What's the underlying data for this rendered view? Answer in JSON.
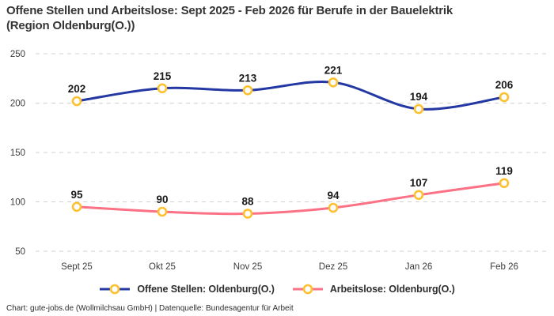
{
  "header": {
    "title_lines": [
      "Offene Stellen und Arbeitslose: Sept 2025 - Feb 2026 für Berufe in der Bauelektrik",
      "(Region Oldenburg(O.))"
    ]
  },
  "chart_data": {
    "type": "line",
    "title": "Offene Stellen und Arbeitslose: Sept 2025 - Feb 2026 für Berufe in der Bauelektrik (Region Oldenburg(O.))",
    "categories": [
      "Sept 25",
      "Okt 25",
      "Nov 25",
      "Dez 25",
      "Jan 26",
      "Feb 26"
    ],
    "series": [
      {
        "name": "Offene Stellen: Oldenburg(O.)",
        "values": [
          202,
          215,
          213,
          221,
          194,
          206
        ],
        "color": "#2338a3"
      },
      {
        "name": "Arbeitslose: Oldenburg(O.)",
        "values": [
          95,
          90,
          88,
          94,
          107,
          119
        ],
        "color": "#fb7185"
      }
    ],
    "marker_color": "#fdc02f",
    "marker_fill": "#ffffff",
    "yticks": [
      50,
      100,
      150,
      200,
      250
    ],
    "ylim": [
      50,
      250
    ],
    "xlabel": "",
    "ylabel": "",
    "grid": "horizontal-dashed",
    "grid_color": "#d1d1d1",
    "tick_color": "#3c3c3c",
    "data_label_color": "#191919",
    "legend_position": "bottom",
    "smooth": true
  },
  "footer": {
    "source": "Chart: gute-jobs.de (Wollmilchsau GmbH) | Datenquelle: Bundesagentur für Arbeit"
  }
}
